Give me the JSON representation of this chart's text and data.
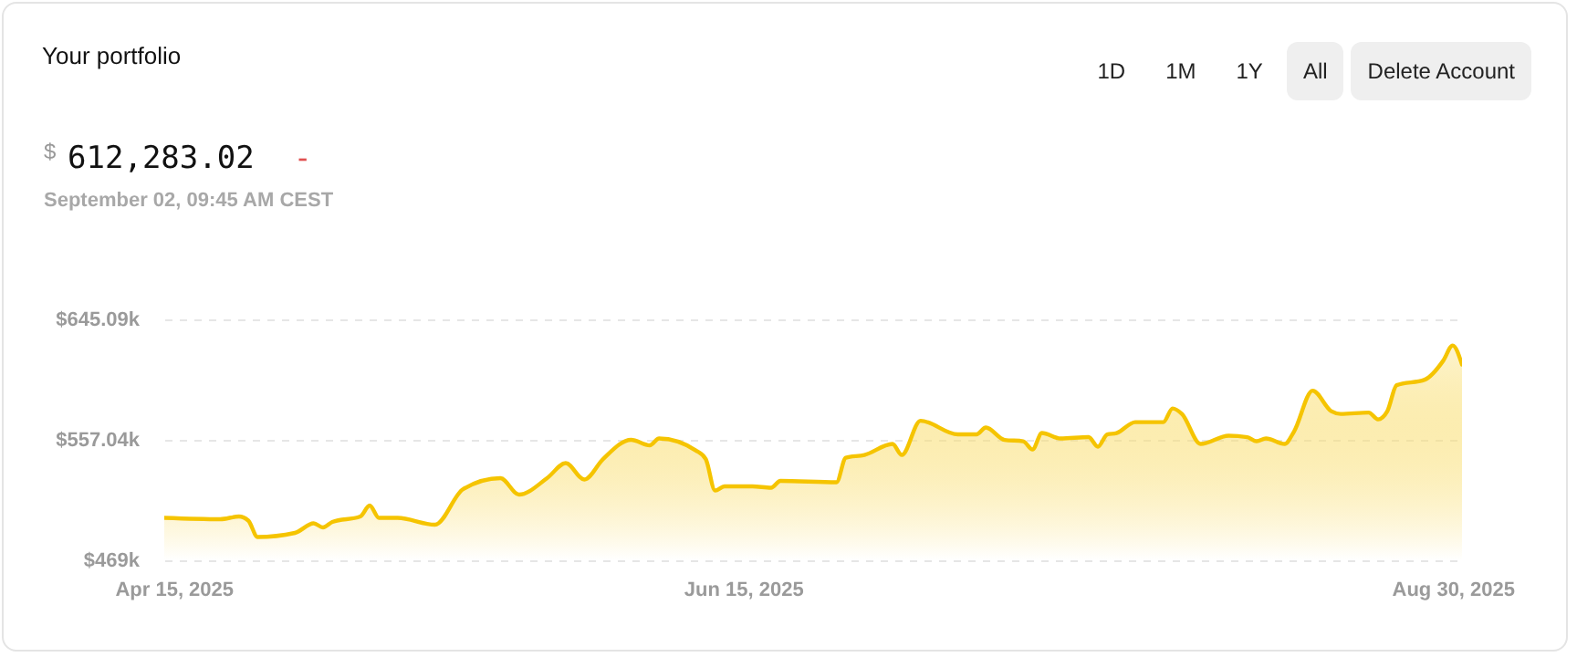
{
  "chart_data": {
    "type": "area",
    "title": "Your portfolio",
    "annotations": [
      "$",
      "612,283.02",
      "-",
      "September 02, 09:45 AM CEST",
      "1D",
      "1M",
      "1Y",
      "All",
      "Delete Account"
    ],
    "x": [
      "2025-04-14",
      "2025-04-20",
      "2025-04-22",
      "2025-04-23",
      "2025-04-24",
      "2025-04-28",
      "2025-04-30",
      "2025-05-01",
      "2025-05-02",
      "2025-05-05",
      "2025-05-06",
      "2025-05-07",
      "2025-05-09",
      "2025-05-13",
      "2025-05-16",
      "2025-05-20",
      "2025-05-22",
      "2025-05-25",
      "2025-05-27",
      "2025-05-29",
      "2025-05-31",
      "2025-06-03",
      "2025-06-05",
      "2025-06-06",
      "2025-06-10",
      "2025-06-11",
      "2025-06-12",
      "2025-06-13",
      "2025-06-16",
      "2025-06-18",
      "2025-06-19",
      "2025-06-25",
      "2025-06-26",
      "2025-06-28",
      "2025-07-01",
      "2025-07-02",
      "2025-07-04",
      "2025-07-08",
      "2025-07-10",
      "2025-07-11",
      "2025-07-13",
      "2025-07-15",
      "2025-07-16",
      "2025-07-17",
      "2025-07-19",
      "2025-07-22",
      "2025-07-23",
      "2025-07-24",
      "2025-07-25",
      "2025-07-27",
      "2025-07-30",
      "2025-07-31",
      "2025-08-01",
      "2025-08-03",
      "2025-08-06",
      "2025-08-08",
      "2025-08-09",
      "2025-08-10",
      "2025-08-12",
      "2025-08-13",
      "2025-08-15",
      "2025-08-17",
      "2025-08-18",
      "2025-08-21",
      "2025-08-22",
      "2025-08-23",
      "2025-08-24",
      "2025-08-27",
      "2025-08-29",
      "2025-08-30",
      "2025-08-31"
    ],
    "series": [
      {
        "color": "#f5c400",
        "values": [
          500,
          499,
          501,
          498,
          486,
          489,
          496,
          493,
          497,
          501,
          509,
          500,
          500,
          495,
          521,
          529,
          517,
          529,
          540,
          528,
          543,
          557,
          553,
          558,
          549,
          543,
          520,
          523,
          523,
          522,
          527,
          526,
          544,
          546,
          554,
          546,
          571,
          561,
          561,
          566,
          557,
          556,
          550,
          562,
          558,
          559,
          552,
          561,
          562,
          570,
          570,
          580,
          576,
          554,
          560,
          559,
          556,
          558,
          554,
          563,
          593,
          578,
          576,
          577,
          572,
          578,
          597,
          601,
          615,
          626,
          612
        ]
      }
    ],
    "xlim": [
      "2025-04-14",
      "2025-08-31"
    ],
    "xticks": [
      {
        "value": "2025-04-15",
        "label": "Apr 15, 2025"
      },
      {
        "value": "2025-06-15",
        "label": "Jun 15, 2025"
      },
      {
        "value": "2025-08-30",
        "label": "Aug 30, 2025"
      }
    ],
    "ylim": [
      469,
      645.09
    ],
    "yticks": [
      {
        "value": 469,
        "label": "$469k"
      },
      {
        "value": 557.04,
        "label": "$557.04k"
      },
      {
        "value": 645.09,
        "label": "$645.09k"
      }
    ],
    "grid": "y"
  }
}
